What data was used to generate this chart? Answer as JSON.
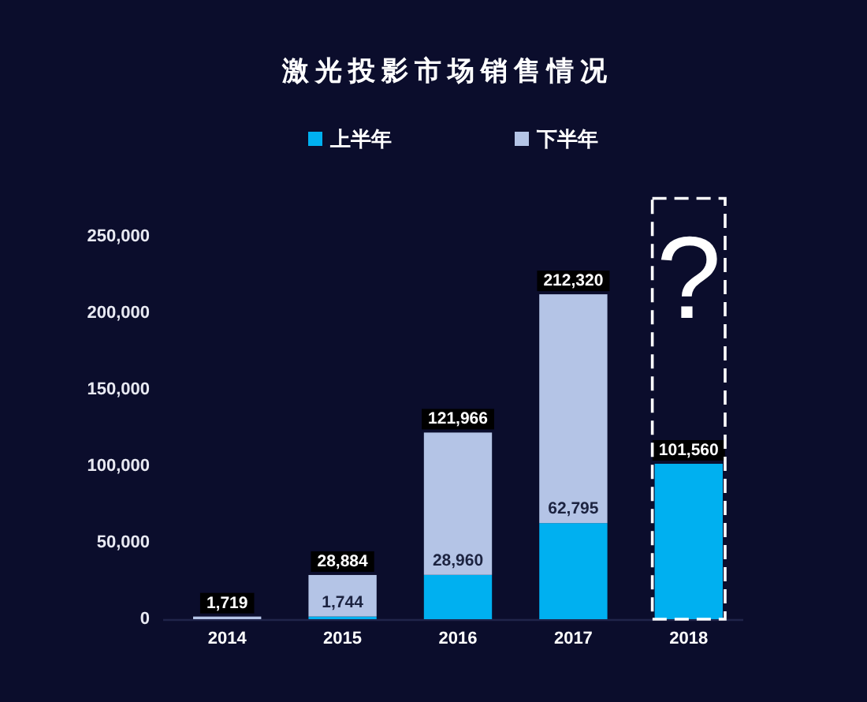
{
  "chart_data": {
    "type": "bar",
    "title": "激光投影市场销售情况",
    "categories": [
      "2014",
      "2015",
      "2016",
      "2017",
      "2018"
    ],
    "stacked": true,
    "series": [
      {
        "name": "上半年",
        "color": "#00b0f0",
        "values": [
          null,
          1744,
          28960,
          62795,
          101560
        ],
        "value_labels": [
          null,
          "1,744",
          "28,960",
          "62,795",
          "101,560"
        ]
      },
      {
        "name": "下半年",
        "color": "#b4c4e6",
        "values": [
          1719,
          27140,
          93006,
          149525,
          null
        ]
      }
    ],
    "totals": [
      "1,719",
      "28,884",
      "121,966",
      "212,320",
      null
    ],
    "ylim": [
      0,
      275000
    ],
    "yticks": [
      0,
      {
        "value": 50000,
        "label": "50,000"
      },
      {
        "value": 100000,
        "label": "100,000"
      },
      {
        "value": 150000,
        "label": "150,000"
      },
      {
        "value": 200000,
        "label": "200,000"
      },
      {
        "value": 250000,
        "label": "250,000"
      }
    ],
    "legend": "top",
    "annotations": [
      "?"
    ]
  }
}
